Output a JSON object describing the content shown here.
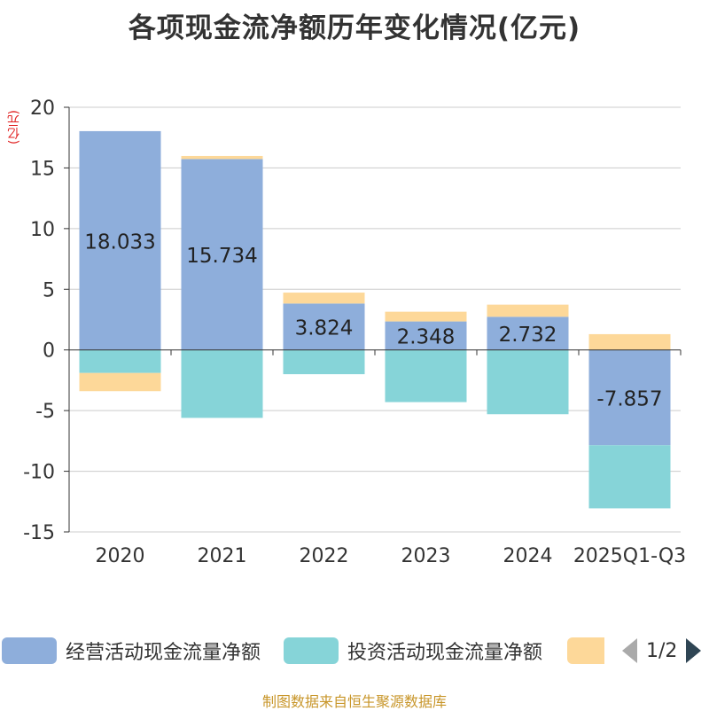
{
  "chart_data": {
    "type": "bar",
    "stacked": true,
    "title": "各项现金流净额历年变化情况(亿元)",
    "ylabel": "(亿元)",
    "categories": [
      "2020",
      "2021",
      "2022",
      "2023",
      "2024",
      "2025Q1-Q3"
    ],
    "ylim": [
      -15,
      20
    ],
    "yticks": [
      20,
      15,
      10,
      5,
      0,
      -5,
      -10,
      -15
    ],
    "ytick_labels": [
      "20",
      "15",
      "10",
      "5",
      "0",
      "-5",
      "-10",
      "-15"
    ],
    "series": [
      {
        "name": "经营活动现金流量净额",
        "color": "#8eaedb",
        "values": [
          18.033,
          15.734,
          3.824,
          2.348,
          2.732,
          -7.857
        ],
        "labels": [
          "18.033",
          "15.734",
          "3.824",
          "2.348",
          "2.732",
          "-7.857"
        ]
      },
      {
        "name": "投资活动现金流量净额",
        "color": "#86d4d8",
        "values": [
          -1.9,
          -5.6,
          -2.0,
          -4.3,
          -5.3,
          -5.2
        ]
      },
      {
        "name": "",
        "color": "#fdd899",
        "values": [
          -1.5,
          0.25,
          0.9,
          0.8,
          1.0,
          1.3
        ]
      }
    ],
    "grid": true,
    "legend_position": "bottom"
  },
  "legend": {
    "items": [
      {
        "label": "经营活动现金流量净额",
        "color": "#8eaedb"
      },
      {
        "label": "投资活动现金流量净额",
        "color": "#86d4d8"
      },
      {
        "label": "",
        "color": "#fdd899"
      }
    ],
    "page_indicator": "1/2"
  },
  "source": "制图数据来自恒生聚源数据库"
}
